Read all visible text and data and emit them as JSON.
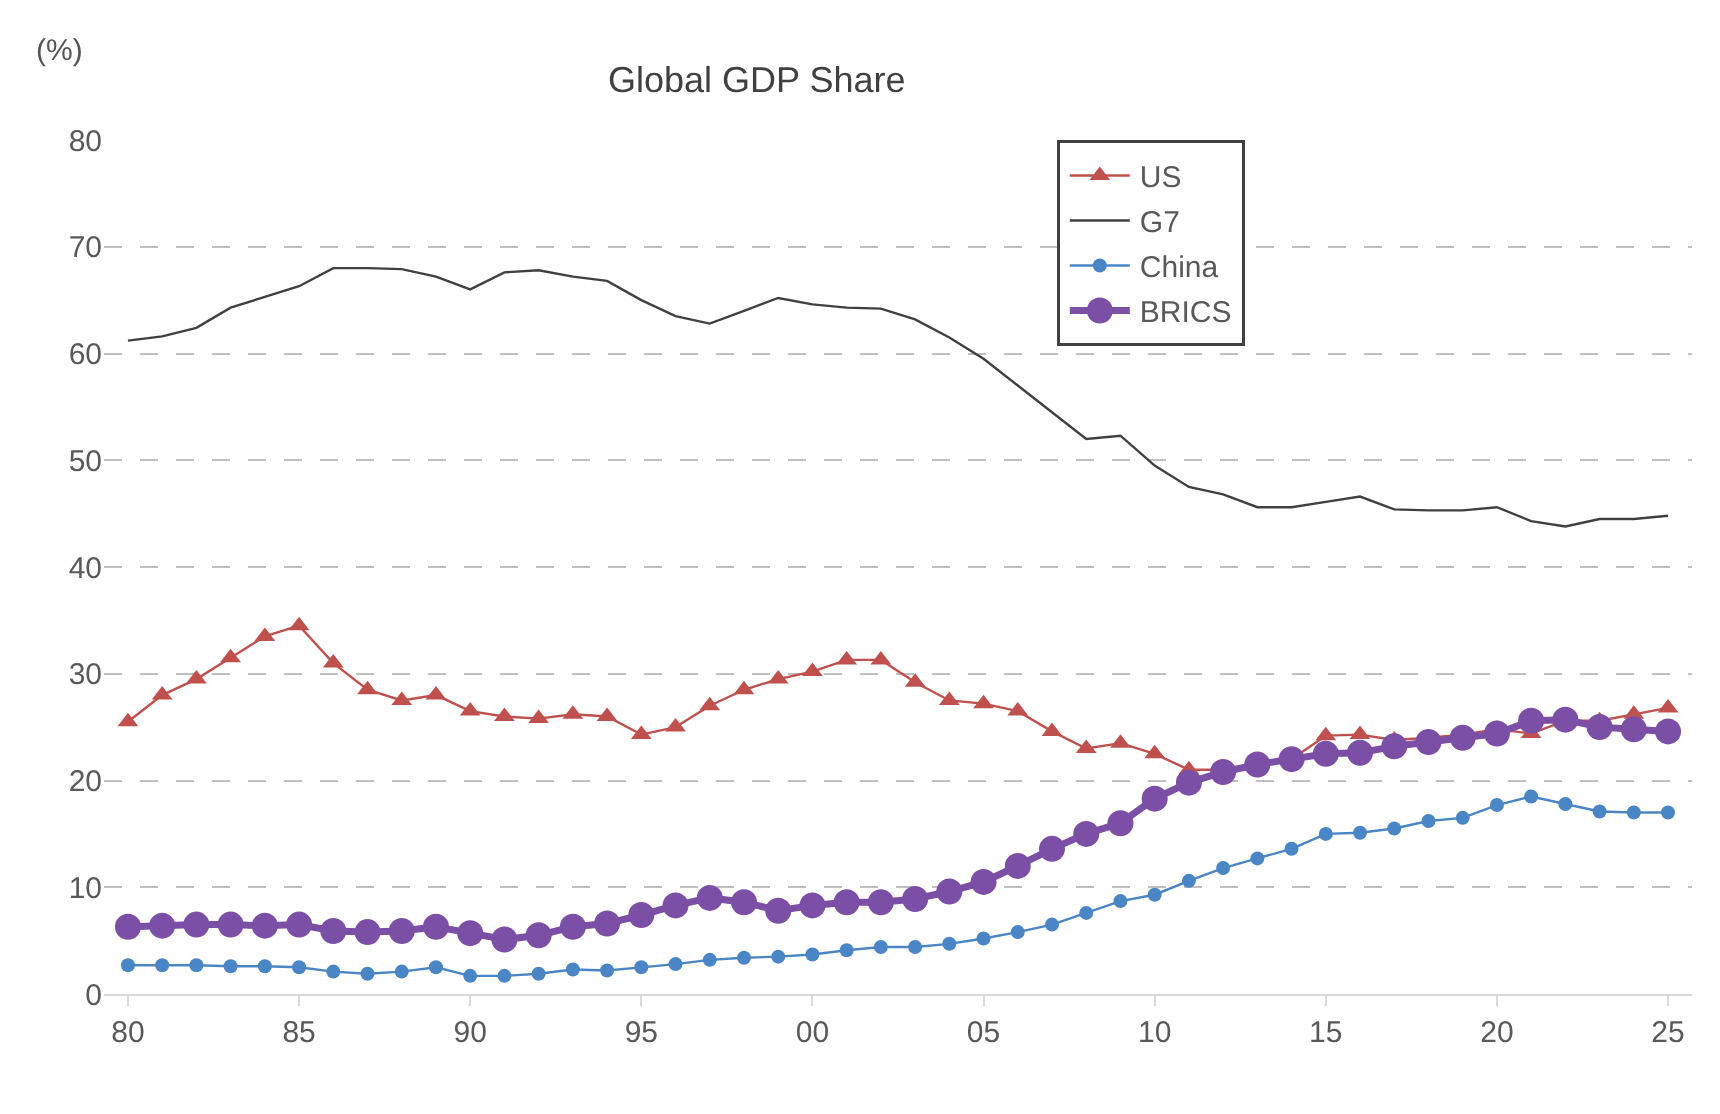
{
  "chart_data": {
    "type": "line",
    "title": "Global GDP Share",
    "ylabel": "(%)",
    "x": [
      1980,
      1981,
      1982,
      1983,
      1984,
      1985,
      1986,
      1987,
      1988,
      1989,
      1990,
      1991,
      1992,
      1993,
      1994,
      1995,
      1996,
      1997,
      1998,
      1999,
      2000,
      2001,
      2002,
      2003,
      2004,
      2005,
      2006,
      2007,
      2008,
      2009,
      2010,
      2011,
      2012,
      2013,
      2014,
      2015,
      2016,
      2017,
      2018,
      2019,
      2020,
      2021,
      2022,
      2023,
      2024,
      2025
    ],
    "series": [
      {
        "name": "US",
        "color": "#c0504d",
        "marker": "triangle",
        "values": [
          25.5,
          28,
          29.5,
          31.5,
          33.5,
          34.5,
          31,
          28.5,
          27.5,
          28,
          26.5,
          26,
          25.8,
          26.2,
          26,
          24.3,
          25,
          27,
          28.5,
          29.5,
          30.2,
          31.3,
          31.3,
          29.2,
          27.5,
          27.2,
          26.5,
          24.6,
          23,
          23.5,
          22.5,
          21,
          21,
          21.5,
          22,
          24.2,
          24.3,
          23.8,
          24,
          24.3,
          24.8,
          24.4,
          25.6,
          25.6,
          26.2,
          26.8
        ]
      },
      {
        "name": "G7",
        "color": "#404040",
        "marker": "none",
        "values": [
          61.2,
          61.6,
          62.4,
          64.3,
          65.3,
          66.3,
          68,
          68,
          67.9,
          67.2,
          66,
          67.6,
          67.8,
          67.2,
          66.8,
          65,
          63.5,
          62.8,
          64,
          65.2,
          64.6,
          64.3,
          64.2,
          63.2,
          61.5,
          59.5,
          57,
          54.5,
          52,
          52.3,
          49.5,
          47.5,
          46.8,
          45.6,
          45.6,
          46.1,
          46.6,
          45.4,
          45.3,
          45.3,
          45.6,
          44.3,
          43.8,
          44.5,
          44.5,
          44.8
        ]
      },
      {
        "name": "China",
        "color": "#4a86c5",
        "marker": "circle",
        "values": [
          2.7,
          2.7,
          2.7,
          2.6,
          2.6,
          2.5,
          2.1,
          1.9,
          2.1,
          2.5,
          1.7,
          1.7,
          1.9,
          2.3,
          2.2,
          2.5,
          2.8,
          3.2,
          3.4,
          3.5,
          3.7,
          4.1,
          4.4,
          4.4,
          4.7,
          5.2,
          5.8,
          6.5,
          7.6,
          8.7,
          9.3,
          10.6,
          11.8,
          12.7,
          13.6,
          15,
          15.1,
          15.5,
          16.2,
          16.5,
          17.7,
          18.5,
          17.8,
          17.1,
          17,
          17
        ]
      },
      {
        "name": "BRICS",
        "color": "#7b4fa6",
        "marker": "circle",
        "values": [
          6.3,
          6.4,
          6.5,
          6.5,
          6.4,
          6.5,
          5.9,
          5.8,
          5.9,
          6.3,
          5.7,
          5.1,
          5.5,
          6.3,
          6.6,
          7.4,
          8.3,
          9,
          8.6,
          7.8,
          8.3,
          8.6,
          8.6,
          8.9,
          9.6,
          10.5,
          12,
          13.6,
          15,
          16,
          18.3,
          19.8,
          20.8,
          21.5,
          22,
          22.5,
          22.6,
          23.2,
          23.6,
          24,
          24.4,
          25.6,
          25.7,
          25,
          24.8,
          24.6
        ]
      }
    ],
    "xlim": [
      1979.3,
      2025.7
    ],
    "xticks": [
      {
        "value": 1980,
        "label": "80"
      },
      {
        "value": 1985,
        "label": "85"
      },
      {
        "value": 1990,
        "label": "90"
      },
      {
        "value": 1995,
        "label": "95"
      },
      {
        "value": 2000,
        "label": "00"
      },
      {
        "value": 2005,
        "label": "05"
      },
      {
        "value": 2010,
        "label": "10"
      },
      {
        "value": 2015,
        "label": "15"
      },
      {
        "value": 2020,
        "label": "20"
      },
      {
        "value": 2025,
        "label": "25"
      }
    ],
    "ylim": [
      0,
      80
    ],
    "yticks": [
      0,
      10,
      20,
      30,
      40,
      50,
      60,
      70,
      80
    ],
    "grid": "y",
    "legend": "top right",
    "line_style": "solid"
  }
}
